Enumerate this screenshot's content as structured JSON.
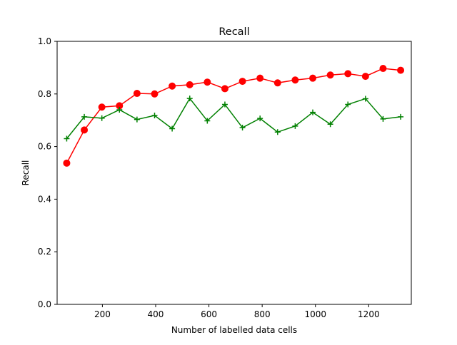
{
  "chart_data": {
    "type": "line",
    "title": "Recall",
    "xlabel": "Number of labelled data cells",
    "ylabel": "Recall",
    "xlim": [
      30,
      1360
    ],
    "ylim": [
      0.0,
      1.0
    ],
    "x_ticks": [
      200,
      400,
      600,
      800,
      1000,
      1200
    ],
    "y_ticks": [
      0.0,
      0.2,
      0.4,
      0.6,
      0.8,
      1.0
    ],
    "x_tick_labels": [
      "200",
      "400",
      "600",
      "800",
      "1000",
      "1200"
    ],
    "y_tick_labels": [
      "0.0",
      "0.2",
      "0.4",
      "0.6",
      "0.8",
      "1.0"
    ],
    "grid": false,
    "x": [
      66,
      132,
      198,
      264,
      330,
      396,
      462,
      528,
      594,
      660,
      726,
      792,
      858,
      924,
      990,
      1056,
      1122,
      1188,
      1254,
      1320
    ],
    "series": [
      {
        "color": "#ff0000",
        "marker": "circle",
        "values": [
          0.537,
          0.663,
          0.75,
          0.755,
          0.802,
          0.8,
          0.83,
          0.835,
          0.845,
          0.82,
          0.848,
          0.86,
          0.842,
          0.853,
          0.86,
          0.872,
          0.877,
          0.867,
          0.897,
          0.89
        ]
      },
      {
        "color": "#008000",
        "marker": "plus",
        "values": [
          0.63,
          0.713,
          0.708,
          0.74,
          0.703,
          0.718,
          0.668,
          0.783,
          0.698,
          0.76,
          0.672,
          0.707,
          0.655,
          0.678,
          0.73,
          0.685,
          0.76,
          0.782,
          0.705,
          0.713
        ]
      }
    ]
  }
}
